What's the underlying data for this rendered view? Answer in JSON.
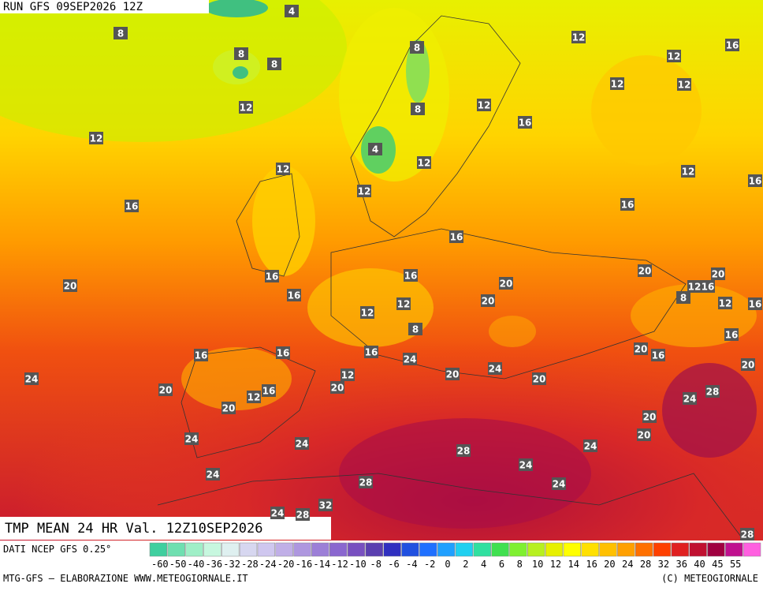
{
  "header": {
    "run": "RUN GFS 09SEP2026 12Z"
  },
  "map": {
    "title": "TMP MEAN 24 HR Val. 12Z10SEP2026",
    "labels": [
      4,
      8,
      8,
      8,
      12,
      16,
      8,
      12,
      12,
      12,
      12,
      8,
      12,
      16,
      12,
      4,
      12,
      12,
      12,
      12,
      16,
      16,
      16,
      16,
      20,
      20,
      16,
      16,
      20,
      12,
      16,
      20,
      16,
      8,
      12,
      20,
      12,
      16,
      12,
      8,
      16,
      20,
      16,
      16,
      16,
      16,
      24,
      20,
      12,
      24,
      20,
      24,
      20,
      20,
      20,
      16,
      12,
      24,
      28,
      20,
      20,
      20,
      24,
      24,
      24,
      28,
      24,
      24,
      28,
      24,
      32,
      24,
      28,
      28
    ]
  },
  "legend": {
    "source": "DATI NCEP GFS 0.25°",
    "ticks": [
      "-60",
      "-50",
      "-40",
      "-36",
      "-32",
      "-28",
      "-24",
      "-20",
      "-16",
      "-14",
      "-12",
      "-10",
      "-8",
      "-6",
      "-4",
      "-2",
      "0",
      "2",
      "4",
      "6",
      "8",
      "10",
      "12",
      "14",
      "16",
      "20",
      "24",
      "28",
      "32",
      "36",
      "40",
      "45",
      "55"
    ],
    "colors": [
      "#3fcf9f",
      "#6fdfb0",
      "#9fefc7",
      "#c7f7df",
      "#dff0f0",
      "#d7d7f0",
      "#cfc7ef",
      "#c0afe7",
      "#ae97df",
      "#9c7fd7",
      "#8a67cf",
      "#7850c0",
      "#5a3fb0",
      "#3030c0",
      "#2050e0",
      "#2070ff",
      "#20a0ff",
      "#20d0f0",
      "#30e0a0",
      "#40e050",
      "#7ff030",
      "#b7f020",
      "#e7f000",
      "#ffff00",
      "#ffe000",
      "#ffc000",
      "#ffa000",
      "#ff7000",
      "#ff4000",
      "#e02020",
      "#c01030",
      "#a00040",
      "#c0108f",
      "#ff60e0"
    ]
  },
  "footer": {
    "left": "MTG-GFS – ELABORAZIONE WWW.METEOGIORNALE.IT",
    "right": "(C) METEOGIORNALE"
  }
}
